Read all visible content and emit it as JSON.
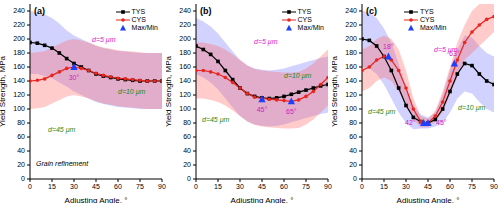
{
  "chart_data": [
    {
      "type": "line",
      "title": "(a)",
      "xlabel": "Adjusting Angle, °",
      "ylabel": "Yield Strength, MPa",
      "x": [
        0,
        5,
        10,
        15,
        20,
        25,
        30,
        35,
        40,
        45,
        50,
        55,
        60,
        65,
        70,
        75,
        80,
        85,
        90
      ],
      "xlim": [
        0,
        90
      ],
      "xticks": [
        0,
        15,
        30,
        45,
        60,
        75,
        90
      ],
      "ylim": [
        0,
        250
      ],
      "yticks": [
        0,
        20,
        40,
        60,
        80,
        100,
        120,
        140,
        160,
        180,
        200,
        220,
        240
      ],
      "series": [
        {
          "name": "TYS",
          "color": "#000000",
          "marker": "square",
          "values": [
            195,
            194,
            191,
            187,
            180,
            172,
            165,
            160,
            155,
            150,
            147,
            145,
            143,
            142,
            141,
            140,
            140,
            140,
            140
          ],
          "band_low": [
            150,
            150,
            147,
            144,
            138,
            132,
            125,
            120,
            115,
            110,
            107,
            105,
            103,
            102,
            101,
            100,
            100,
            100,
            100
          ],
          "band_high": [
            240,
            238,
            235,
            230,
            222,
            212,
            205,
            200,
            195,
            190,
            187,
            185,
            183,
            182,
            181,
            180,
            180,
            180,
            180
          ]
        },
        {
          "name": "CYS",
          "color": "#e8251f",
          "marker": "circle",
          "values": [
            140,
            141,
            143,
            148,
            153,
            158,
            160,
            158,
            155,
            151,
            148,
            146,
            144,
            143,
            142,
            141,
            140,
            140,
            140
          ],
          "band_low": [
            100,
            101,
            103,
            108,
            113,
            118,
            120,
            118,
            115,
            111,
            108,
            106,
            104,
            103,
            102,
            101,
            100,
            100,
            100
          ],
          "band_high": [
            180,
            181,
            183,
            188,
            193,
            198,
            200,
            198,
            195,
            191,
            188,
            186,
            184,
            183,
            182,
            181,
            180,
            180,
            180
          ]
        }
      ],
      "extrema": {
        "name": "Max/Min",
        "color": "#1f3fff",
        "marker": "triangle",
        "points": [
          {
            "x": 30,
            "y": 160,
            "label": "30°"
          }
        ]
      },
      "annotations": [
        {
          "text": "d=5 μm",
          "color": "#e020d0"
        },
        {
          "text": "d=10 μm",
          "color": "#1a8a1a"
        },
        {
          "text": "d=45 μm",
          "color": "#1a8a1a"
        },
        {
          "text": "Grain refinement",
          "color": "#000000"
        }
      ]
    },
    {
      "type": "line",
      "title": "(b)",
      "xlabel": "Adjusting Angle, °",
      "ylabel": "Yield Strength, MPa",
      "x": [
        0,
        5,
        10,
        15,
        20,
        25,
        30,
        35,
        40,
        45,
        50,
        55,
        60,
        65,
        70,
        75,
        80,
        85,
        90
      ],
      "xlim": [
        0,
        90
      ],
      "xticks": [
        0,
        15,
        30,
        45,
        60,
        75,
        90
      ],
      "ylim": [
        0,
        250
      ],
      "yticks": [
        0,
        20,
        40,
        60,
        80,
        100,
        120,
        140,
        160,
        180,
        200,
        220,
        240
      ],
      "series": [
        {
          "name": "TYS",
          "color": "#000000",
          "marker": "square",
          "values": [
            190,
            185,
            178,
            168,
            155,
            142,
            130,
            122,
            118,
            116,
            115,
            116,
            118,
            121,
            124,
            127,
            130,
            133,
            135
          ],
          "band_low": [
            150,
            145,
            138,
            128,
            115,
            102,
            90,
            82,
            78,
            76,
            75,
            76,
            78,
            81,
            84,
            87,
            90,
            93,
            95
          ],
          "band_high": [
            230,
            225,
            218,
            208,
            195,
            182,
            170,
            162,
            158,
            156,
            155,
            156,
            158,
            161,
            164,
            167,
            170,
            173,
            175
          ]
        },
        {
          "name": "CYS",
          "color": "#e8251f",
          "marker": "circle",
          "values": [
            155,
            155,
            153,
            150,
            145,
            138,
            130,
            122,
            117,
            115,
            114,
            113,
            112,
            111,
            113,
            118,
            125,
            135,
            145
          ],
          "band_low": [
            115,
            115,
            113,
            110,
            105,
            98,
            90,
            82,
            77,
            75,
            74,
            73,
            72,
            72,
            73,
            78,
            85,
            95,
            105
          ],
          "band_high": [
            195,
            195,
            193,
            190,
            185,
            178,
            170,
            162,
            157,
            155,
            154,
            153,
            152,
            152,
            153,
            158,
            165,
            175,
            185
          ]
        }
      ],
      "extrema": {
        "name": "Max/Min",
        "color": "#1f3fff",
        "marker": "triangle",
        "points": [
          {
            "x": 45,
            "y": 114,
            "label": "45°"
          },
          {
            "x": 65,
            "y": 111,
            "label": "65°"
          }
        ]
      },
      "annotations": [
        {
          "text": "d=5 μm",
          "color": "#e020d0"
        },
        {
          "text": "d=10 μm",
          "color": "#1a8a1a"
        },
        {
          "text": "d=45 μm",
          "color": "#1a8a1a"
        }
      ]
    },
    {
      "type": "line",
      "title": "(c)",
      "xlabel": "Adjusting Angle, °",
      "ylabel": "Yield Strength, MPa",
      "x": [
        0,
        5,
        10,
        15,
        20,
        25,
        30,
        35,
        40,
        45,
        50,
        55,
        60,
        65,
        70,
        75,
        80,
        85,
        90
      ],
      "xlim": [
        0,
        90
      ],
      "xticks": [
        0,
        15,
        30,
        45,
        60,
        75,
        90
      ],
      "ylim": [
        0,
        250
      ],
      "yticks": [
        0,
        20,
        40,
        60,
        80,
        100,
        120,
        140,
        160,
        180,
        200,
        220,
        240
      ],
      "series": [
        {
          "name": "TYS",
          "color": "#000000",
          "marker": "square",
          "values": [
            200,
            198,
            190,
            175,
            155,
            130,
            105,
            88,
            82,
            80,
            85,
            100,
            125,
            150,
            165,
            162,
            150,
            140,
            135
          ],
          "band_low": [
            160,
            158,
            150,
            135,
            115,
            95,
            80,
            71,
            72,
            72,
            75,
            80,
            95,
            115,
            125,
            122,
            110,
            100,
            95
          ],
          "band_high": [
            240,
            238,
            230,
            215,
            195,
            165,
            130,
            105,
            92,
            88,
            95,
            120,
            155,
            185,
            205,
            202,
            190,
            180,
            175
          ]
        },
        {
          "name": "CYS",
          "color": "#e8251f",
          "marker": "circle",
          "values": [
            155,
            160,
            170,
            175,
            170,
            155,
            130,
            100,
            82,
            80,
            90,
            110,
            140,
            170,
            195,
            210,
            220,
            228,
            232
          ],
          "band_low": [
            125,
            130,
            140,
            145,
            140,
            125,
            105,
            85,
            74,
            74,
            82,
            95,
            120,
            145,
            170,
            180,
            190,
            200,
            210
          ],
          "band_high": [
            185,
            190,
            200,
            205,
            200,
            185,
            155,
            115,
            90,
            86,
            98,
            125,
            160,
            195,
            220,
            240,
            250,
            250,
            250
          ]
        }
      ],
      "extrema": {
        "name": "Max/Min",
        "color": "#1f3fff",
        "marker": "triangle",
        "points": [
          {
            "x": 18,
            "y": 175,
            "label": "18°"
          },
          {
            "x": 42,
            "y": 80,
            "label": "42°"
          },
          {
            "x": 45,
            "y": 80,
            "label": "45°"
          },
          {
            "x": 63,
            "y": 165,
            "label": "63°"
          }
        ]
      },
      "annotations": [
        {
          "text": "d=5 μm",
          "color": "#e020d0"
        },
        {
          "text": "d=10 μm",
          "color": "#1a8a1a"
        },
        {
          "text": "d=45 μm",
          "color": "#1a8a1a"
        }
      ]
    }
  ]
}
